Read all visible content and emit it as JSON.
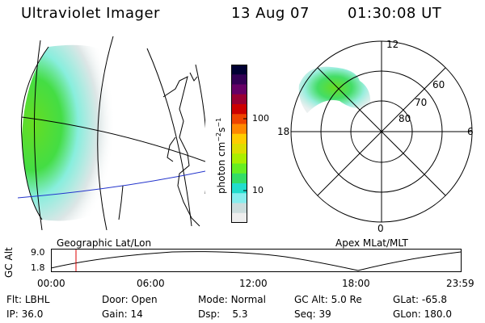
{
  "header": {
    "instrument": "Ultraviolet Imager",
    "date": "13 Aug 07",
    "time": "01:30:08 UT"
  },
  "colorbar": {
    "unit_label": "photon cm",
    "unit_sup1": "−2",
    "unit_s": "s",
    "unit_sup2": "−1",
    "ticks": [
      "100",
      "10"
    ],
    "colors": [
      "#000033",
      "#330055",
      "#660066",
      "#990033",
      "#cc0000",
      "#ee4400",
      "#ff8800",
      "#ffcc00",
      "#dddd00",
      "#aaee00",
      "#66ee22",
      "#33dd66",
      "#22ddcc",
      "#88eeee",
      "#ccdddd",
      "#eeeeee"
    ]
  },
  "polar": {
    "mlt_labels": {
      "top": "12",
      "left": "18",
      "right": "6",
      "bottom": "0"
    },
    "lat_labels": [
      "60",
      "70",
      "80"
    ]
  },
  "timeline": {
    "left_title": "Geographic Lat/Lon",
    "right_title": "Apex MLat/MLT",
    "y_label": "GC Alt",
    "y_top": "9.0",
    "y_bottom": "1.8",
    "x_ticks": [
      "00:00",
      "06:00",
      "12:00",
      "18:00",
      "23:59"
    ],
    "marker_time": "01:30"
  },
  "info": {
    "row1": [
      {
        "k": "Flt:",
        "v": "LBHL"
      },
      {
        "k": "Door:",
        "v": "Open"
      },
      {
        "k": "Mode:",
        "v": "Normal"
      },
      {
        "k": "GC Alt:",
        "v": "5.0 Re"
      },
      {
        "k": "GLat:",
        "v": "-65.8"
      }
    ],
    "row2": [
      {
        "k": "IP:",
        "v": "36.0"
      },
      {
        "k": "Gain:",
        "v": "14"
      },
      {
        "k": "Dsp:",
        "v": "5.3"
      },
      {
        "k": "Seq:",
        "v": "39"
      },
      {
        "k": "GLon:",
        "v": "180.0"
      }
    ]
  }
}
